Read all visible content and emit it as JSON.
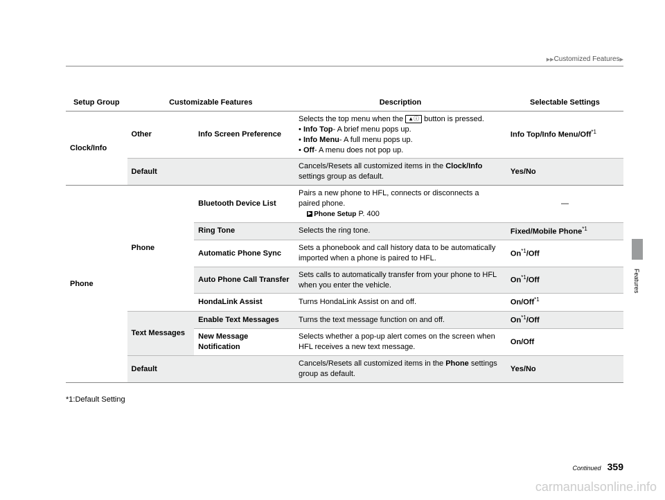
{
  "breadcrumb": {
    "text": "Customized Features"
  },
  "headers": {
    "c1": "Setup Group",
    "c2": "Customizable Features",
    "c3": "Description",
    "c4": "Selectable Settings"
  },
  "rows": {
    "r1": {
      "group": "Clock/Info",
      "sub": "Other",
      "feat": "Info Screen Preference",
      "desc_line1": "Selects the top menu when the ",
      "desc_btn": "▲ⓘ",
      "desc_line1b": " button is pressed.",
      "desc_b1": "Info Top",
      "desc_b1t": "- A brief menu pops up.",
      "desc_b2": "Info Menu",
      "desc_b2t": "- A full menu pops up.",
      "desc_b3": "Off",
      "desc_b3t": "- A menu does not pop up.",
      "setting": "Info Top/Info Menu/Off",
      "sup": "*1"
    },
    "r2": {
      "feat": "Default",
      "desc_a": "Cancels/Resets all customized items in the ",
      "desc_b": "Clock/Info",
      "desc_c": " settings group as default.",
      "setting": "Yes/No"
    },
    "r3": {
      "group": "Phone",
      "sub": "Phone",
      "feat": "Bluetooth Device List",
      "desc_a": "Pairs a new phone to HFL, connects or disconnects a paired phone.",
      "xref": "Phone Setup",
      "xpage": " P. 400",
      "setting": "—"
    },
    "r4": {
      "feat": "Ring Tone",
      "desc": "Selects the ring tone.",
      "setting": "Fixed/Mobile Phone",
      "sup": "*1"
    },
    "r5": {
      "feat": "Automatic Phone Sync",
      "desc": "Sets a phonebook and call history data to be automatically imported when a phone is paired to HFL.",
      "setting_a": "On",
      "sup": "*1",
      "setting_b": "/Off"
    },
    "r6": {
      "feat": "Auto Phone Call Transfer",
      "desc": "Sets calls to automatically transfer from your phone to HFL when you enter the vehicle.",
      "setting_a": "On",
      "sup": "*1",
      "setting_b": "/Off"
    },
    "r7": {
      "feat": "HondaLink Assist",
      "desc": "Turns HondaLink Assist on and off.",
      "setting_a": "On/Off",
      "sup": "*1"
    },
    "r8": {
      "sub": "Text Messages",
      "feat": "Enable Text Messages",
      "desc": "Turns the text message function on and off.",
      "setting_a": "On",
      "sup": "*1",
      "setting_b": "/Off"
    },
    "r9": {
      "feat": "New Message Notification",
      "desc": "Selects whether a pop-up alert comes on the screen when HFL receives a new text message.",
      "setting": "On/Off"
    },
    "r10": {
      "feat": "Default",
      "desc_a": "Cancels/Resets all customized items in the ",
      "desc_b": "Phone",
      "desc_c": " settings group as default.",
      "setting": "Yes/No"
    }
  },
  "footnote": "*1:Default Setting",
  "side": "Features",
  "footer": {
    "cont": "Continued",
    "page": "359"
  },
  "watermark": "carmanualsonline.info"
}
